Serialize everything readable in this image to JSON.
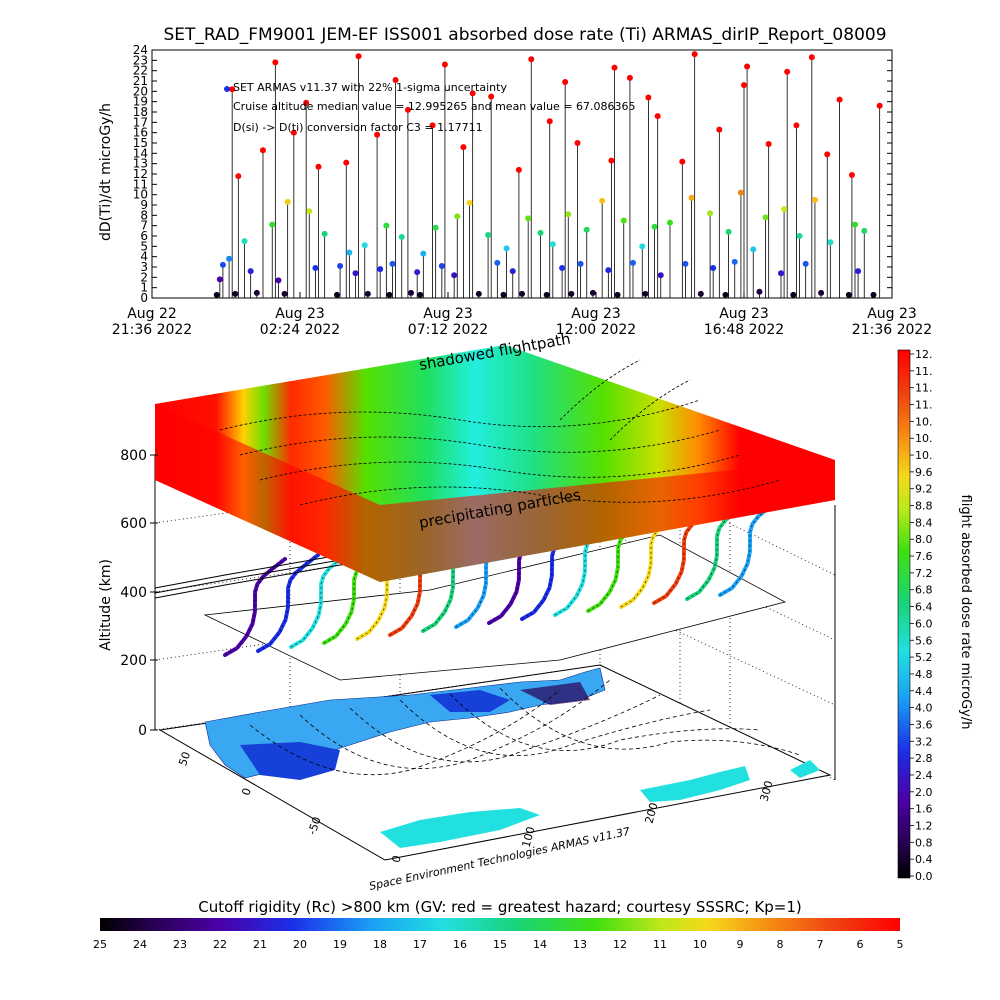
{
  "chart_data": [
    {
      "type": "scatter",
      "title": "SET_RAD_FM9001  JEM-EF ISS001 absorbed dose rate (Ti) ARMAS_dirIP_Report_08009",
      "ylabel": "dD(Ti)/dt microGy/h",
      "ylim": [
        0,
        24
      ],
      "yticks": [
        "0",
        "1",
        "2",
        "3",
        "4",
        "5",
        "6",
        "7",
        "8",
        "9",
        "10",
        "11",
        "12",
        "13",
        "14",
        "15",
        "16",
        "17",
        "18",
        "19",
        "20",
        "21",
        "22",
        "23",
        "24"
      ],
      "xticks": [
        {
          "day": "Aug 22",
          "time": "21:36 2022"
        },
        {
          "day": "Aug 23",
          "time": "02:24 2022"
        },
        {
          "day": "Aug 23",
          "time": "07:12 2022"
        },
        {
          "day": "Aug 23",
          "time": "12:00 2022"
        },
        {
          "day": "Aug 23",
          "time": "16:48 2022"
        },
        {
          "day": "Aug 23",
          "time": "21:36 2022"
        }
      ],
      "xlim_hours": [
        0,
        24
      ],
      "annotations": [
        "SET ARMAS v11.37 with 22% 1-sigma uncertainty",
        "Cruise altitude median value = 12.995265 and mean value = 67.086365",
        "D(si) -> D(ti) conversion factor C3 = 1.17711"
      ],
      "series": [
        {
          "x": [
            2.1,
            2.2,
            2.3,
            2.7,
            3.2,
            3.4,
            4.1,
            4.3,
            5.3,
            6.0,
            6.1,
            6.6,
            7.0,
            7.4,
            7.7,
            7.8,
            8.4,
            8.6,
            8.7,
            9.4,
            9.8,
            10.6,
            11.2,
            11.4,
            11.7,
            12.0,
            12.8,
            13.3,
            13.6,
            13.9,
            14.3,
            14.8,
            15.1,
            15.6,
            16.0,
            16.5,
            17.3,
            17.8,
            18.2,
            18.6,
            18.9,
            19.7,
            20.4,
            20.8,
            21.2,
            21.7,
            22.6,
            22.9,
            23.4
          ],
          "y": [
            0.3,
            1.8,
            3.2,
            0.4,
            2.6,
            0.5,
            1.7,
            0.4,
            2.9,
            0.3,
            3.1,
            2.4,
            0.4,
            2.8,
            0.3,
            3.3,
            0.5,
            2.5,
            0.3,
            3.1,
            2.2,
            0.4,
            3.4,
            0.3,
            2.6,
            0.4,
            0.3,
            2.9,
            0.4,
            3.3,
            0.5,
            2.7,
            0.3,
            3.4,
            0.4,
            2.2,
            3.3,
            0.4,
            2.9,
            0.3,
            3.5,
            0.6,
            2.4,
            0.3,
            3.3,
            0.5,
            0.3,
            2.6,
            0.3
          ]
        },
        {
          "x": [
            2.5,
            3.0,
            3.9,
            4.4,
            5.1,
            5.6,
            6.4,
            6.9,
            7.6,
            8.1,
            8.8,
            9.2,
            9.9,
            10.3,
            10.9,
            11.5,
            12.2,
            12.6,
            13.0,
            13.5,
            14.1,
            14.6,
            15.3,
            15.9,
            16.3,
            16.8,
            17.5,
            18.1,
            18.7,
            19.1,
            19.5,
            19.9,
            20.5,
            21.0,
            21.5,
            22.0,
            22.8,
            23.1
          ],
          "y": [
            3.8,
            5.5,
            7.1,
            9.3,
            8.4,
            6.2,
            4.4,
            5.1,
            7.0,
            5.9,
            4.3,
            6.8,
            7.9,
            9.2,
            6.1,
            4.8,
            7.7,
            6.3,
            5.2,
            8.1,
            6.6,
            9.4,
            7.5,
            5.0,
            6.9,
            7.3,
            9.7,
            8.2,
            6.4,
            10.2,
            4.7,
            7.8,
            8.6,
            6.0,
            9.5,
            5.4,
            7.1,
            6.5
          ]
        },
        {
          "x": [
            2.8,
            3.6,
            4.6,
            5.4,
            6.3,
            7.3,
            8.3,
            9.1,
            10.1,
            11.0,
            11.9,
            12.9,
            13.8,
            14.9,
            15.5,
            16.4,
            17.2,
            18.4,
            19.3,
            20.0,
            20.9,
            21.9,
            22.7,
            23.6
          ],
          "y": [
            11.8,
            14.3,
            16.0,
            12.7,
            13.1,
            15.8,
            18.2,
            16.7,
            14.6,
            19.5,
            12.4,
            17.1,
            15.0,
            13.3,
            21.3,
            17.6,
            13.2,
            16.3,
            22.4,
            14.9,
            16.7,
            13.9,
            11.9,
            18.6
          ]
        },
        {
          "x": [
            2.6,
            4.0,
            5.0,
            6.7,
            7.9,
            9.5,
            10.4,
            12.3,
            13.4,
            15.0,
            16.1,
            17.6,
            19.2,
            20.6,
            21.4,
            22.3
          ],
          "y": [
            20.2,
            22.8,
            18.9,
            23.4,
            21.1,
            22.6,
            19.8,
            23.1,
            20.9,
            22.3,
            19.4,
            23.6,
            20.6,
            21.9,
            23.3,
            19.2
          ]
        }
      ]
    },
    {
      "type": "surface3d",
      "zlabel": "Altitude (km)",
      "zticks": [
        "0",
        "200",
        "400",
        "600",
        "800"
      ],
      "lat_ticks": [
        "-50",
        "0",
        "50"
      ],
      "lon_ticks": [
        "0",
        "100",
        "200",
        "300"
      ],
      "layer_labels": [
        "shadowed flightpath",
        "precipitating particles"
      ],
      "credit": "Space Environment Technologies ARMAS v11.37"
    },
    {
      "type": "colorbar",
      "label": "flight absorbed dose rate microGy/h",
      "ticks": [
        "12.",
        "11.",
        "11.",
        "11.",
        "10.",
        "10.",
        "10.",
        "9.6",
        "9.2",
        "8.8",
        "8.4",
        "8.0",
        "7.6",
        "7.2",
        "6.8",
        "6.4",
        "6.0",
        "5.6",
        "5.2",
        "4.8",
        "4.4",
        "4.0",
        "3.6",
        "3.2",
        "2.8",
        "2.4",
        "2.0",
        "1.6",
        "1.2",
        "0.8",
        "0.4",
        "0.0"
      ]
    },
    {
      "type": "colorbar",
      "label": "Cutoff rigidity (Rc) >800 km (GV: red = greatest hazard; courtesy SSSRC; Kp=1)",
      "ticks": [
        "25",
        "24",
        "23",
        "22",
        "21",
        "20",
        "19",
        "18",
        "17",
        "16",
        "15",
        "14",
        "13",
        "12",
        "11",
        "10",
        "9",
        "8",
        "7",
        "6",
        "5"
      ]
    }
  ]
}
